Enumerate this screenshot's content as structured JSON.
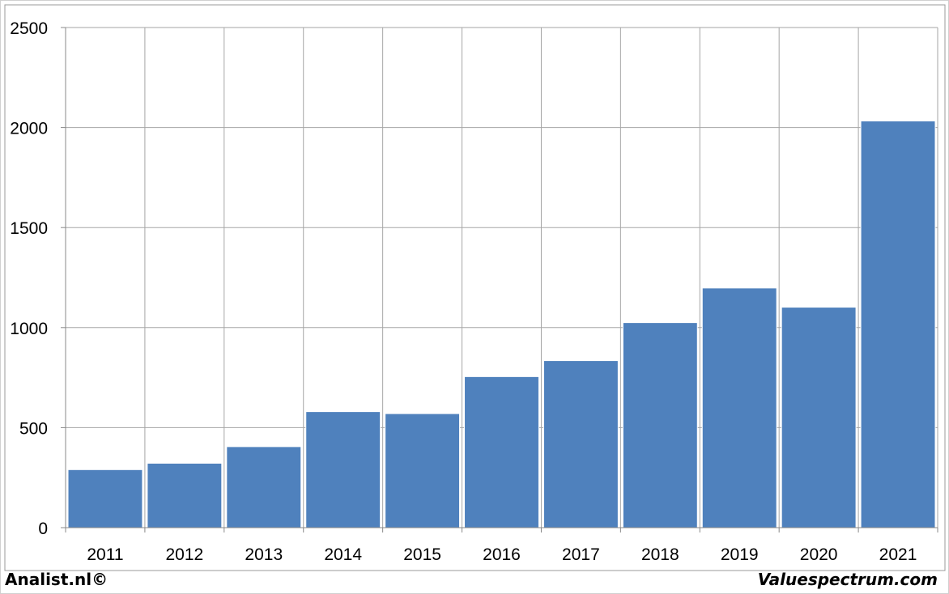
{
  "chart_data": {
    "type": "bar",
    "categories": [
      "2011",
      "2012",
      "2013",
      "2014",
      "2015",
      "2016",
      "2017",
      "2018",
      "2019",
      "2020",
      "2021"
    ],
    "values": [
      290,
      322,
      405,
      580,
      570,
      755,
      835,
      1025,
      1198,
      1102,
      2033
    ],
    "ylim": [
      0,
      2500
    ],
    "yticks": [
      "0",
      "500",
      "1000",
      "1500",
      "2000",
      "2500"
    ],
    "title": "",
    "xlabel": "",
    "ylabel": "",
    "grid": true,
    "legend": "none",
    "bar_color": "#4f81bd"
  },
  "footer": {
    "left": "Analist.nl©",
    "right": "Valuespectrum.com"
  }
}
